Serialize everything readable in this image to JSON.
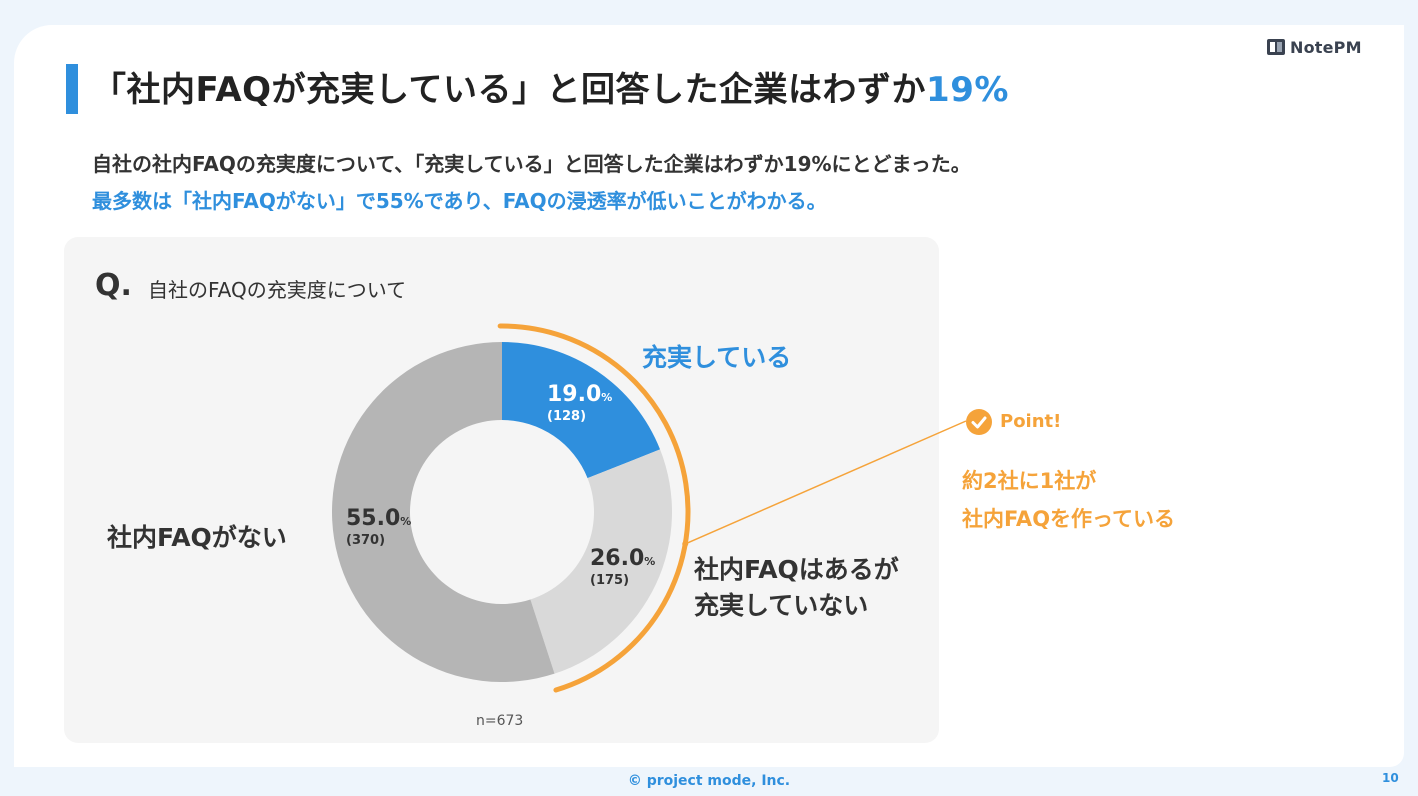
{
  "logo": {
    "text": "NotePM"
  },
  "title": {
    "main": "「社内FAQが充実している」と回答した企業はわずか",
    "highlight": "19%"
  },
  "subtitle": {
    "line1": "自社の社内FAQの充実度について、「充実している」と回答した企業はわずか19%にとどまった。",
    "line2": "最多数は「社内FAQがない」で55%であり、FAQの浸透率が低いことがわかる。"
  },
  "question": {
    "mark": "Q.",
    "text": "自社のFAQの充実度について"
  },
  "chart_data": {
    "type": "pie",
    "categories": [
      "充実している",
      "社内FAQはあるが充実していない",
      "社内FAQがない"
    ],
    "category_lines": [
      [
        "充実している"
      ],
      [
        "社内FAQはあるが",
        "充実していない"
      ],
      [
        "社内FAQがない"
      ]
    ],
    "values": [
      19.0,
      26.0,
      55.0
    ],
    "value_labels": [
      "19.0",
      "26.0",
      "55.0"
    ],
    "unit": "%",
    "counts": [
      "(128)",
      "(175)",
      "(370)"
    ],
    "colors": [
      "#2f8fdd",
      "#d9d9d9",
      "#b5b5b5"
    ],
    "highlight_color": "#f5a33a",
    "sample": "n=673"
  },
  "point": {
    "label": "Point!",
    "lines": [
      "約2社に1社が",
      "社内FAQを作っている"
    ]
  },
  "footer": {
    "copyright": "© project mode, Inc.",
    "page": "10"
  }
}
